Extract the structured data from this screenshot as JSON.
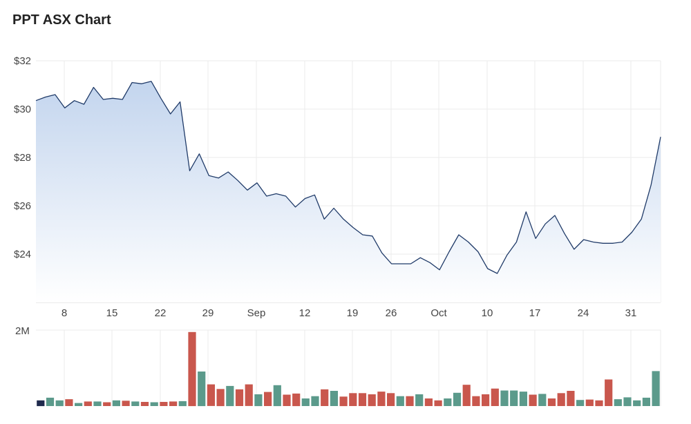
{
  "title": "PPT ASX Chart",
  "colors": {
    "price_line": "#1f3a68",
    "area_top": "#c3d5ee",
    "area_bottom": "#ffffff",
    "volume_up": "#5b9a8b",
    "volume_down": "#c9574d",
    "volume_first": "#1f2a4d",
    "grid": "#ebebeb"
  },
  "chart_data": [
    {
      "type": "area",
      "title": "PPT ASX Chart",
      "xlabel": "",
      "ylabel": "",
      "grid": true,
      "x_tick_labels": [
        "8",
        "15",
        "22",
        "29",
        "Sep",
        "12",
        "19",
        "26",
        "Oct",
        "10",
        "17",
        "24",
        "31"
      ],
      "y_tick_labels": [
        "$24",
        "$26",
        "$28",
        "$30",
        "$32"
      ],
      "y_ticks": [
        24,
        26,
        28,
        30,
        32
      ],
      "ylim": [
        22,
        32
      ],
      "y_unit": "$",
      "values": [
        30.35,
        30.5,
        30.6,
        30.05,
        30.35,
        30.2,
        30.9,
        30.4,
        30.45,
        30.4,
        31.1,
        31.05,
        31.15,
        30.45,
        29.8,
        30.3,
        27.45,
        28.15,
        27.25,
        27.15,
        27.4,
        27.05,
        26.65,
        26.95,
        26.4,
        26.5,
        26.4,
        25.95,
        26.3,
        26.45,
        25.45,
        25.9,
        25.45,
        25.1,
        24.8,
        24.75,
        24.05,
        23.6,
        23.6,
        23.6,
        23.85,
        23.65,
        23.35,
        24.1,
        24.8,
        24.5,
        24.1,
        23.4,
        23.2,
        23.95,
        24.5,
        25.75,
        24.65,
        25.25,
        25.6,
        24.85,
        24.2,
        24.6,
        24.5,
        24.45,
        24.45,
        24.5,
        24.9,
        25.45,
        26.85,
        28.85
      ]
    },
    {
      "type": "bar",
      "title": "",
      "grid": true,
      "y_tick_labels": [
        "2M"
      ],
      "y_ticks": [
        2000000
      ],
      "ylim": [
        0,
        2000000
      ],
      "values": [
        150000,
        220000,
        150000,
        180000,
        80000,
        120000,
        120000,
        100000,
        150000,
        140000,
        120000,
        110000,
        100000,
        110000,
        120000,
        130000,
        1950000,
        910000,
        570000,
        450000,
        530000,
        440000,
        570000,
        310000,
        370000,
        550000,
        300000,
        330000,
        200000,
        260000,
        440000,
        400000,
        250000,
        340000,
        340000,
        310000,
        380000,
        340000,
        260000,
        260000,
        310000,
        200000,
        150000,
        200000,
        350000,
        560000,
        260000,
        310000,
        460000,
        410000,
        410000,
        380000,
        300000,
        320000,
        200000,
        340000,
        400000,
        160000,
        170000,
        150000,
        700000,
        180000,
        230000,
        150000,
        220000,
        920000
      ],
      "directions": [
        "first",
        "up",
        "up",
        "down",
        "up",
        "down",
        "up",
        "down",
        "up",
        "down",
        "up",
        "down",
        "up",
        "down",
        "down",
        "up",
        "down",
        "up",
        "down",
        "down",
        "up",
        "down",
        "down",
        "up",
        "down",
        "up",
        "down",
        "down",
        "up",
        "up",
        "down",
        "up",
        "down",
        "down",
        "down",
        "down",
        "down",
        "down",
        "up",
        "down",
        "up",
        "down",
        "down",
        "up",
        "up",
        "down",
        "down",
        "down",
        "down",
        "up",
        "up",
        "up",
        "down",
        "up",
        "down",
        "down",
        "down",
        "up",
        "down",
        "down",
        "down",
        "up",
        "up",
        "up",
        "up",
        "up"
      ]
    }
  ]
}
